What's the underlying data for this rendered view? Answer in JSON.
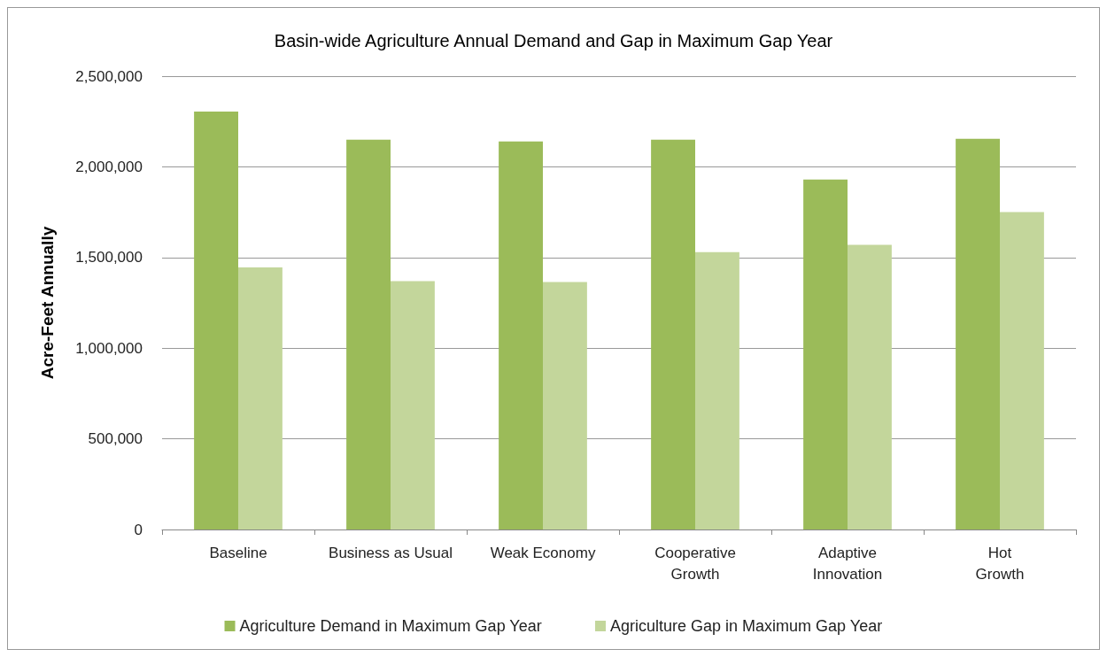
{
  "chart_data": {
    "type": "bar",
    "title": "Basin-wide Agriculture Annual Demand and Gap in Maximum Gap Year",
    "ylabel": "Acre-Feet Annually",
    "categories": [
      "Baseline",
      "Business as Usual",
      "Weak Economy",
      "Cooperative\nGrowth",
      "Adaptive\nInnovation",
      "Hot\nGrowth"
    ],
    "series": [
      {
        "name": "Agriculture Demand in Maximum Gap Year",
        "color": "#9bbb59",
        "values": [
          2305000,
          2150000,
          2140000,
          2150000,
          1930000,
          2155000
        ]
      },
      {
        "name": "Agriculture Gap in Maximum Gap Year",
        "color": "#c3d69b",
        "values": [
          1445000,
          1370000,
          1365000,
          1530000,
          1570000,
          1750000
        ]
      }
    ],
    "ylim": [
      0,
      2500000
    ],
    "yticks": [
      0,
      {
        "value": 500000,
        "label": "500,000"
      },
      {
        "value": 1000000,
        "label": "1,000,000"
      },
      {
        "value": 1500000,
        "label": "1,500,000"
      },
      {
        "value": 2000000,
        "label": "2,000,000"
      },
      {
        "value": 2500000,
        "label": "2,500,000"
      }
    ],
    "grid": "y",
    "legend": "bottom"
  }
}
